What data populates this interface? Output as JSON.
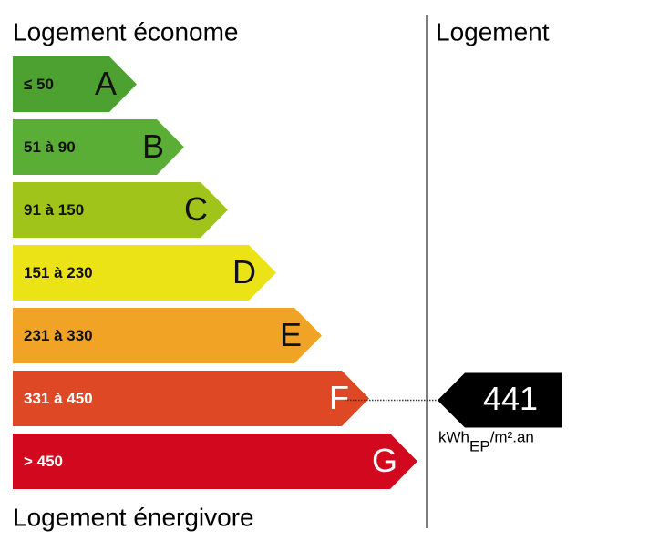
{
  "header": {
    "left": "Logement économe",
    "right": "Logement"
  },
  "footer": "Logement énergivore",
  "classes": [
    {
      "range": "≤ 50",
      "letter": "A",
      "color": "#4ca130"
    },
    {
      "range": "51 à 90",
      "letter": "B",
      "color": "#5aae36"
    },
    {
      "range": "91 à 150",
      "letter": "C",
      "color": "#a0c419"
    },
    {
      "range": "151 à 230",
      "letter": "D",
      "color": "#ebe316"
    },
    {
      "range": "231 à 330",
      "letter": "E",
      "color": "#f0a324"
    },
    {
      "range": "331 à 450",
      "letter": "F",
      "color": "#de4824"
    },
    {
      "range": "> 450",
      "letter": "G",
      "color": "#d2081f"
    }
  ],
  "rating": {
    "value": "441",
    "class": "F",
    "unit": "kWh",
    "unit_sub": "EP",
    "unit_rest": "/m².an"
  }
}
